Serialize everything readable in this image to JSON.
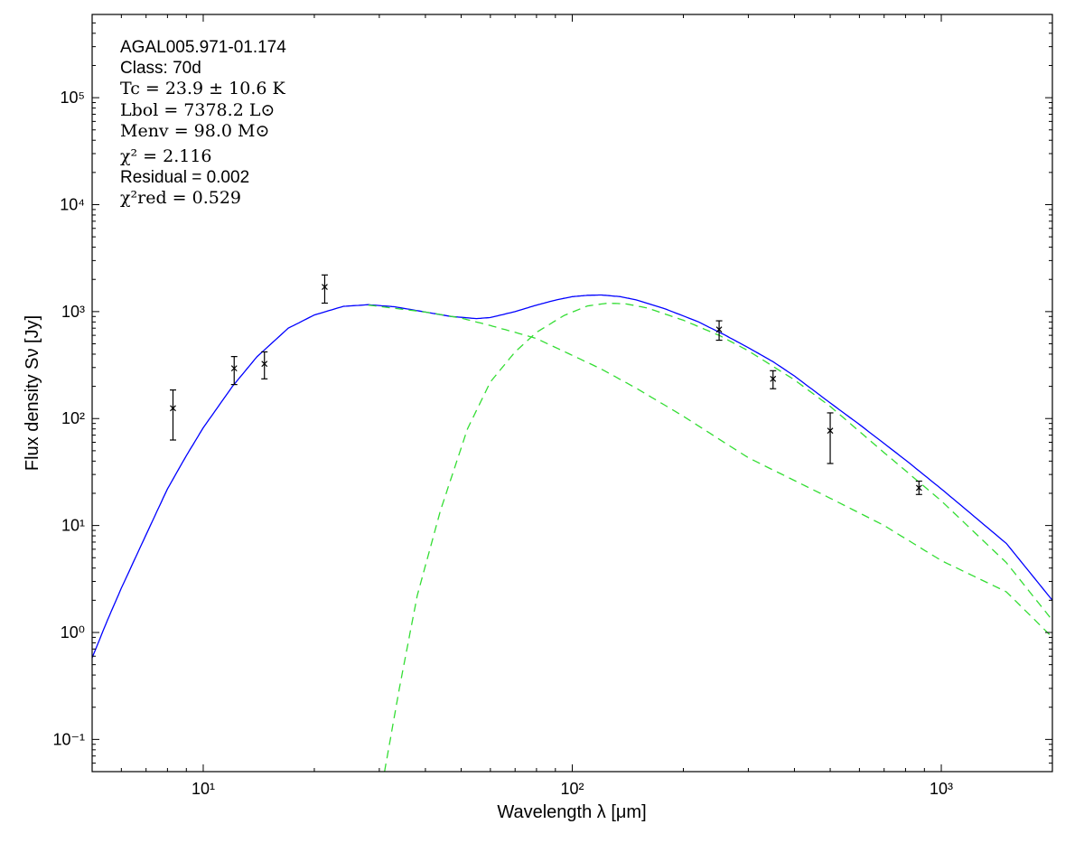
{
  "chart_data": {
    "type": "scatter",
    "title": "",
    "xlabel": "Wavelength λ [μm]",
    "ylabel": "Flux density Sν [Jy]",
    "xscale": "log",
    "yscale": "log",
    "xlim": [
      5,
      2000
    ],
    "ylim": [
      0.05,
      600000
    ],
    "grid": false,
    "xticks": [
      {
        "value": 10,
        "label": "10¹"
      },
      {
        "value": 100,
        "label": "10²"
      },
      {
        "value": 1000,
        "label": "10³"
      }
    ],
    "yticks": [
      {
        "value": 0.1,
        "label": "10⁻¹"
      },
      {
        "value": 1,
        "label": "10⁰"
      },
      {
        "value": 10,
        "label": "10¹"
      },
      {
        "value": 100,
        "label": "10²"
      },
      {
        "value": 1000,
        "label": "10³"
      },
      {
        "value": 10000,
        "label": "10⁴"
      },
      {
        "value": 100000,
        "label": "10⁵"
      }
    ],
    "annotations": [
      "AGAL005.971-01.174",
      "Class: 70d",
      "Tc = 23.9 ± 10.6 K",
      "Lbol = 7378.2 L⊙",
      "Menv = 98.0 M⊙",
      "χ² = 2.116",
      "Residual = 0.002",
      "χ²red = 0.529"
    ],
    "series": [
      {
        "style": "errorbar",
        "color": "#000000",
        "points": [
          {
            "x": 8.28,
            "y": 125,
            "ylow": 63,
            "yhigh": 185
          },
          {
            "x": 12.13,
            "y": 295,
            "ylow": 208,
            "yhigh": 380
          },
          {
            "x": 14.65,
            "y": 325,
            "ylow": 235,
            "yhigh": 420
          },
          {
            "x": 21.34,
            "y": 1700,
            "ylow": 1200,
            "yhigh": 2200
          },
          {
            "x": 250,
            "y": 680,
            "ylow": 540,
            "yhigh": 820
          },
          {
            "x": 350,
            "y": 235,
            "ylow": 190,
            "yhigh": 280
          },
          {
            "x": 500,
            "y": 77,
            "ylow": 38,
            "yhigh": 113
          },
          {
            "x": 870,
            "y": 22.5,
            "ylow": 19.5,
            "yhigh": 26
          }
        ]
      },
      {
        "style": "solid",
        "color": "#0000ff",
        "x": [
          5,
          5.5,
          6,
          7,
          8,
          9,
          10,
          12,
          14,
          17,
          20,
          24,
          28,
          33,
          40,
          47,
          55,
          60,
          70,
          80,
          90,
          100,
          110,
          120,
          135,
          150,
          180,
          220,
          260,
          300,
          350,
          400,
          500,
          600,
          800,
          1000,
          1200,
          1500,
          2000
        ],
        "y": [
          0.58,
          1.3,
          2.6,
          8.2,
          22,
          45,
          82,
          200,
          380,
          700,
          930,
          1120,
          1160,
          1110,
          990,
          900,
          860,
          880,
          1000,
          1150,
          1280,
          1380,
          1420,
          1430,
          1380,
          1280,
          1050,
          800,
          600,
          460,
          340,
          250,
          140,
          88,
          41,
          22,
          13,
          6.8,
          2.0
        ]
      },
      {
        "style": "dashed",
        "color": "#33dd33",
        "x": [
          28,
          40,
          50,
          60,
          70,
          80,
          100,
          120,
          150,
          200,
          300,
          500,
          700,
          1000,
          1500,
          2000
        ],
        "y": [
          1150,
          990,
          870,
          740,
          640,
          560,
          390,
          290,
          190,
          105,
          43,
          18,
          10,
          4.7,
          2.4,
          0.9
        ]
      },
      {
        "style": "dashed",
        "color": "#33dd33",
        "x": [
          31,
          34,
          38,
          44,
          52,
          60,
          70,
          80,
          95,
          110,
          125,
          140,
          160,
          200,
          250,
          300,
          400,
          500,
          700,
          1000,
          1500,
          2000
        ],
        "y": [
          0.05,
          0.3,
          2.2,
          14,
          80,
          220,
          420,
          640,
          920,
          1130,
          1200,
          1180,
          1080,
          830,
          600,
          430,
          230,
          130,
          48,
          17,
          4.5,
          1.3
        ]
      }
    ]
  }
}
